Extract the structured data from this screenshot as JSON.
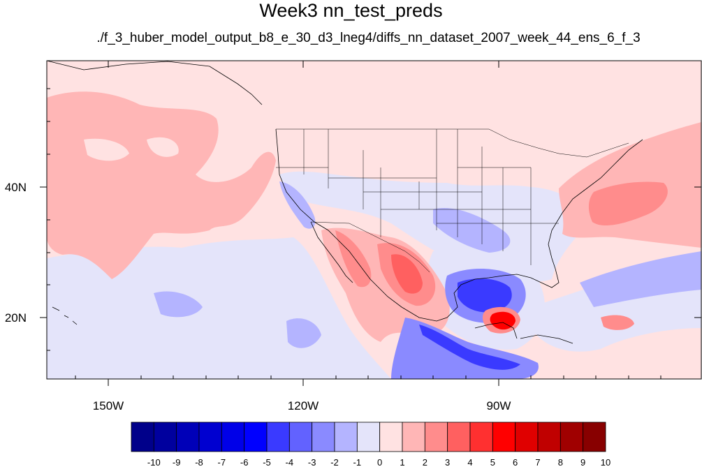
{
  "title": "Week3 nn_test_preds",
  "subtitle": "./f_3_huber_model_output_b8_e_30_d3_lneg4/diffs_nn_dataset_2007_week_44_ens_6_f_3",
  "map": {
    "lon_range": [
      -160,
      -62
    ],
    "lat_range": [
      10,
      59
    ],
    "lon_ticks": [
      "150W",
      "120W",
      "90W"
    ],
    "lat_ticks": [
      "40N",
      "20N"
    ]
  },
  "colorbar": {
    "labels": [
      "-10",
      "-9",
      "-8",
      "-7",
      "-6",
      "-5",
      "-4",
      "-3",
      "-2",
      "-1",
      "0",
      "1",
      "2",
      "3",
      "4",
      "5",
      "6",
      "7",
      "8",
      "9",
      "10"
    ],
    "colors": [
      "#00008a",
      "#00009e",
      "#0000b8",
      "#0000d0",
      "#0000e8",
      "#0000ff",
      "#3a3aff",
      "#6262ff",
      "#8a8aff",
      "#b4b4ff",
      "#e4e4fa",
      "#ffe2e2",
      "#ffb6b6",
      "#ff8c8c",
      "#ff6060",
      "#ff3030",
      "#ff0000",
      "#e00000",
      "#c00000",
      "#a00000",
      "#880000"
    ]
  }
}
